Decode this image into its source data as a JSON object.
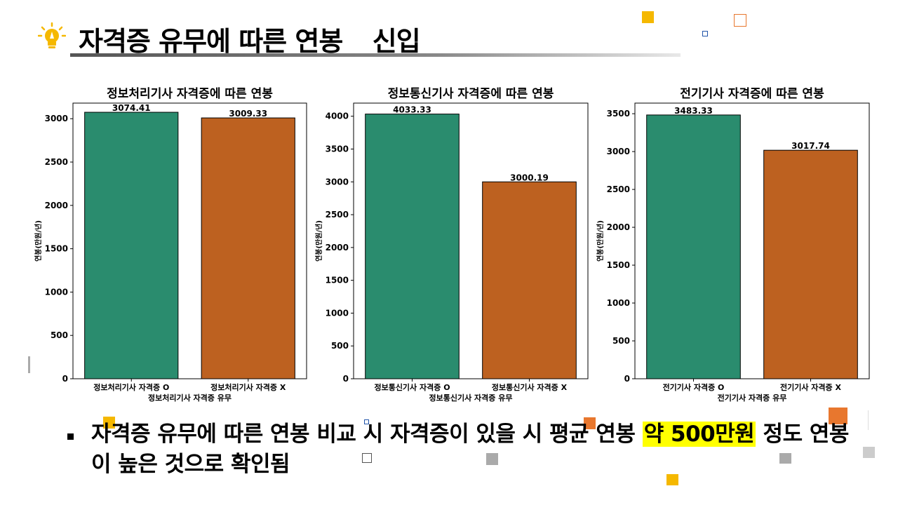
{
  "slide": {
    "title": "자격증 유무에 따른 연봉 _ 신입",
    "bullet_before": "자격증 유무에 따른 연봉 비교 시 자격증이 있을 시 평균 연봉 ",
    "bullet_highlight": "약 500만원",
    "bullet_after": " 정도 연봉이 높은 것으로 확인됨",
    "icon": "lightbulb-icon",
    "colors": {
      "accent_yellow": "#f5b800",
      "accent_orange": "#e8772e",
      "highlight": "#ffff00",
      "bar_with": "#2a8c6e",
      "bar_without": "#bd6120"
    }
  },
  "chart_data": [
    {
      "type": "bar",
      "title": "정보처리기사 자격증에 따른 연봉",
      "xlabel": "정보처리기사 자격증 유무",
      "ylabel": "연봉(만원/년)",
      "categories": [
        "정보처리기사 자격증 O",
        "정보처리기사 자격증 X"
      ],
      "values": [
        3074.41,
        3009.33
      ],
      "value_labels": [
        "3074.41",
        "3009.33"
      ],
      "ylim": [
        0,
        3180
      ],
      "yticks": [
        0,
        500,
        1000,
        1500,
        2000,
        2500,
        3000
      ],
      "colors": [
        "#2a8c6e",
        "#bd6120"
      ],
      "grid": false
    },
    {
      "type": "bar",
      "title": "정보통신기사 자격증에 따른 연봉",
      "xlabel": "정보통신기사 자격증 유무",
      "ylabel": "연봉(만원/년)",
      "categories": [
        "정보통신기사 자격증 O",
        "정보통신기사 자격증 X"
      ],
      "values": [
        4033.33,
        3000.19
      ],
      "value_labels": [
        "4033.33",
        "3000.19"
      ],
      "ylim": [
        0,
        4200
      ],
      "yticks": [
        0,
        500,
        1000,
        1500,
        2000,
        2500,
        3000,
        3500,
        4000
      ],
      "colors": [
        "#2a8c6e",
        "#bd6120"
      ],
      "grid": false
    },
    {
      "type": "bar",
      "title": "전기기사 자격증에 따른 연봉",
      "xlabel": "전기기사 자격증 유무",
      "ylabel": "연봉(만원/년)",
      "categories": [
        "전기기사 자격증 O",
        "전기기사 자격증 X"
      ],
      "values": [
        3483.33,
        3017.74
      ],
      "value_labels": [
        "3483.33",
        "3017.74"
      ],
      "ylim": [
        0,
        3640
      ],
      "yticks": [
        0,
        500,
        1000,
        1500,
        2000,
        2500,
        3000,
        3500
      ],
      "colors": [
        "#2a8c6e",
        "#bd6120"
      ],
      "grid": false
    }
  ]
}
